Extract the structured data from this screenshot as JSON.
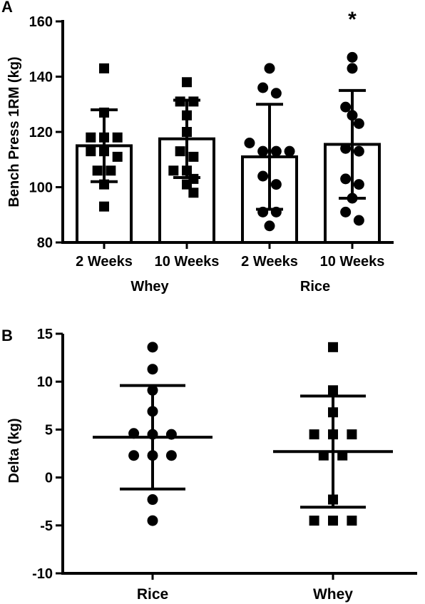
{
  "chart_data": [
    {
      "panel": "A",
      "type": "bar",
      "ylabel": "Bench  Press 1RM (kg)",
      "ylim": [
        80,
        160
      ],
      "yticks": [
        80,
        100,
        120,
        140,
        160
      ],
      "categories": [
        "2 Weeks",
        "10 Weeks",
        "2 Weeks",
        "10 Weeks"
      ],
      "groups": [
        {
          "label": "Whey",
          "categories": [
            "2 Weeks",
            "10 Weeks"
          ]
        },
        {
          "label": "Rice",
          "categories": [
            "2 Weeks",
            "10 Weeks"
          ]
        }
      ],
      "values": [
        115,
        117.5,
        111,
        115.5
      ],
      "error": [
        13,
        14,
        19,
        19.5
      ],
      "significance": [
        "",
        "",
        "",
        "*"
      ],
      "markers": [
        "square",
        "square",
        "circle",
        "circle"
      ],
      "points": [
        [
          143,
          127,
          118,
          118,
          118,
          113,
          113,
          111,
          106,
          106,
          101,
          93
        ],
        [
          138,
          131,
          131,
          126,
          120,
          113,
          111,
          106,
          106,
          103,
          101,
          98
        ],
        [
          143,
          136,
          134,
          116,
          113,
          113,
          113,
          104,
          101,
          91,
          91,
          86
        ],
        [
          147,
          143,
          129,
          126,
          123,
          114,
          113,
          103,
          101,
          96,
          91,
          88
        ]
      ]
    },
    {
      "panel": "B",
      "type": "scatter",
      "ylabel": "Delta (kg)",
      "ylim": [
        -10,
        15
      ],
      "yticks": [
        -10,
        -5,
        0,
        5,
        10,
        15
      ],
      "categories": [
        "Rice",
        "Whey"
      ],
      "markers": [
        "circle",
        "square"
      ],
      "mean": [
        4.2,
        2.7
      ],
      "sd": [
        5.4,
        5.8
      ],
      "points": [
        [
          13.6,
          11.3,
          9.1,
          6.9,
          4.6,
          4.5,
          4.5,
          2.3,
          2.3,
          2.3,
          -2.3,
          -4.5
        ],
        [
          13.6,
          9.1,
          6.8,
          4.5,
          4.5,
          4.5,
          2.3,
          2.3,
          -2.3,
          -4.5,
          -4.5,
          -4.5
        ]
      ]
    }
  ],
  "panel_a": {
    "label": "A",
    "ylabel": "Bench  Press 1RM (kg)"
  },
  "panel_b": {
    "label": "B",
    "ylabel": "Delta (kg)"
  }
}
